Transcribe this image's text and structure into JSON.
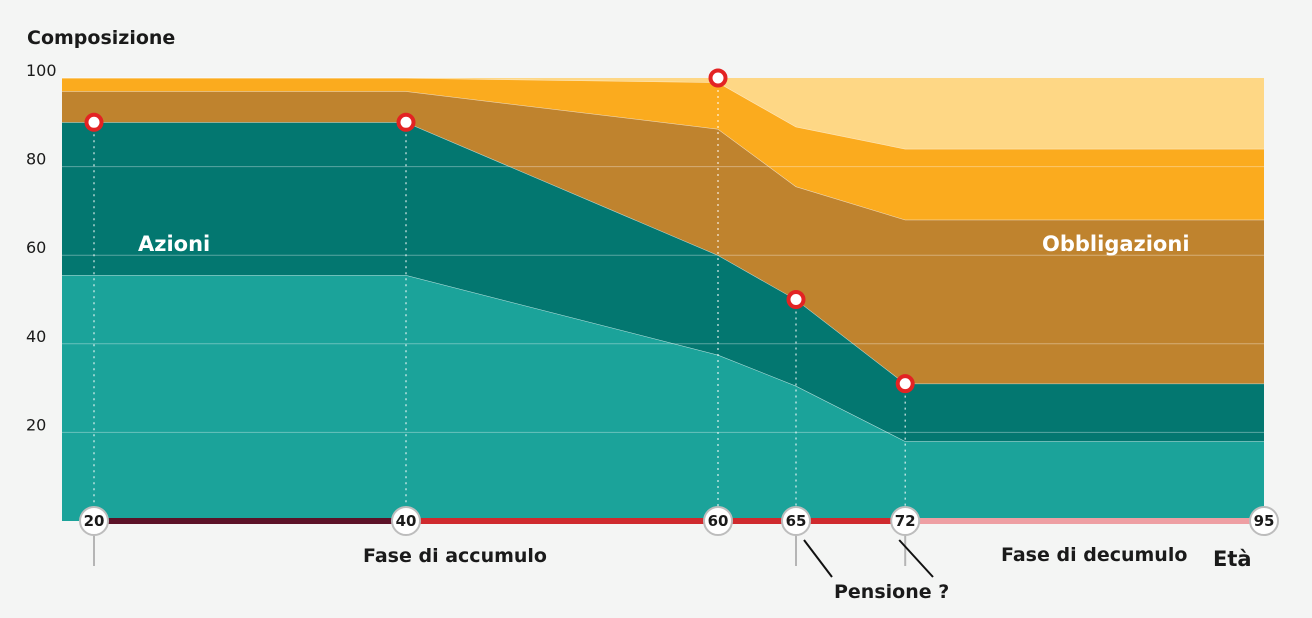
{
  "chart_data": {
    "type": "area",
    "ylabel": "Composizione",
    "xlabel": "Età",
    "yticks": [
      20,
      40,
      60,
      80,
      100
    ],
    "ylim": [
      0,
      100
    ],
    "xlim": [
      20,
      95
    ],
    "x": [
      20,
      40,
      60,
      65,
      72,
      95
    ],
    "series": [
      {
        "values": [
          55.5,
          55.5,
          37.5,
          30.5,
          18,
          18
        ],
        "color": "#1ba39a"
      },
      {
        "values": [
          34.5,
          34.5,
          22.5,
          19.5,
          13,
          13
        ],
        "color": "#037770"
      },
      {
        "values": [
          7,
          7,
          28.5,
          25.5,
          37,
          37
        ],
        "color": "#bf832e"
      },
      {
        "values": [
          3,
          3,
          10.5,
          13.5,
          16,
          16
        ],
        "color": "#fbab1e"
      },
      {
        "values": [
          0,
          0,
          1,
          11,
          16,
          16
        ],
        "color": "#fed785"
      }
    ],
    "annotations": {
      "azioni": "Azioni",
      "obbligazioni": "Obbligazioni",
      "fase_accumulo": "Fase di accumulo",
      "fase_decumulo": "Fase di decumulo",
      "pensione": "Pensione ?"
    },
    "milestones": [
      {
        "age": 20,
        "label": "20",
        "point": 90
      },
      {
        "age": 40,
        "label": "40",
        "point": 90
      },
      {
        "age": 60,
        "label": "60",
        "point": 100
      },
      {
        "age": 65,
        "label": "65",
        "point": 50
      },
      {
        "age": 72,
        "label": "72",
        "point": 31
      },
      {
        "age": 95,
        "label": "95",
        "point": null
      }
    ],
    "timeline_segments": [
      {
        "from": 20,
        "to": 40,
        "color": "#5c1228"
      },
      {
        "from": 40,
        "to": 72,
        "color": "#cf2a2e"
      },
      {
        "from": 72,
        "to": 95,
        "color": "#ee9fa3"
      }
    ],
    "grid": true
  }
}
